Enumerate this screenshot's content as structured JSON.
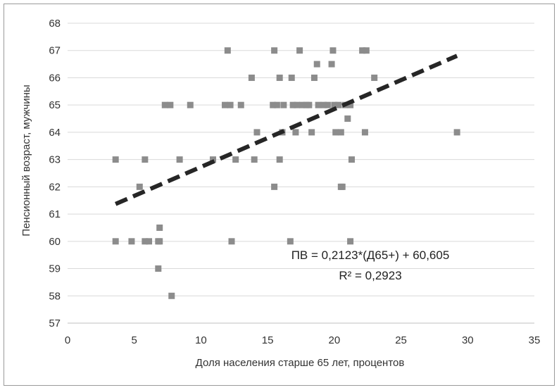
{
  "chart_data": {
    "type": "scatter",
    "xlabel": "Доля населения старше 65 лет, процентов",
    "ylabel": "Пенсионный возраст, мужчины",
    "xlim": [
      0,
      35
    ],
    "ylim": [
      57,
      68
    ],
    "x_ticks": [
      "0",
      "5",
      "10",
      "15",
      "20",
      "25",
      "30",
      "35"
    ],
    "y_ticks": [
      "57",
      "58",
      "59",
      "60",
      "61",
      "62",
      "63",
      "64",
      "65",
      "66",
      "67",
      "68"
    ],
    "grid": "horizontal",
    "colors": {
      "points": "#8c8c8c",
      "trendline": "#262626",
      "grid": "#d9d9d9"
    },
    "points": [
      [
        3.6,
        63
      ],
      [
        3.6,
        60
      ],
      [
        4.8,
        60
      ],
      [
        5.4,
        62
      ],
      [
        5.8,
        63
      ],
      [
        5.8,
        60
      ],
      [
        6.1,
        60
      ],
      [
        6.8,
        60
      ],
      [
        6.9,
        60
      ],
      [
        6.8,
        59
      ],
      [
        6.9,
        60.5
      ],
      [
        7.3,
        65
      ],
      [
        7.7,
        65
      ],
      [
        7.8,
        58
      ],
      [
        8.4,
        63
      ],
      [
        9.2,
        65
      ],
      [
        10.9,
        63
      ],
      [
        11.8,
        65
      ],
      [
        12.0,
        67
      ],
      [
        12.2,
        65
      ],
      [
        12.3,
        60
      ],
      [
        12.6,
        63
      ],
      [
        13.0,
        65
      ],
      [
        13.8,
        66
      ],
      [
        14.0,
        63
      ],
      [
        14.2,
        64
      ],
      [
        15.4,
        65
      ],
      [
        15.5,
        67
      ],
      [
        15.5,
        62
      ],
      [
        15.7,
        65
      ],
      [
        15.9,
        66
      ],
      [
        15.9,
        63
      ],
      [
        16.1,
        64
      ],
      [
        16.2,
        65
      ],
      [
        16.7,
        60
      ],
      [
        16.8,
        66
      ],
      [
        16.9,
        65
      ],
      [
        17.1,
        64
      ],
      [
        17.2,
        65
      ],
      [
        17.4,
        67
      ],
      [
        17.6,
        65
      ],
      [
        17.9,
        65
      ],
      [
        18.1,
        65
      ],
      [
        18.3,
        64
      ],
      [
        18.5,
        66
      ],
      [
        18.7,
        66.5
      ],
      [
        18.8,
        65
      ],
      [
        19.2,
        65
      ],
      [
        19.5,
        65
      ],
      [
        19.8,
        66.5
      ],
      [
        19.9,
        67
      ],
      [
        20.0,
        65
      ],
      [
        20.1,
        64
      ],
      [
        20.3,
        65
      ],
      [
        20.5,
        64
      ],
      [
        20.5,
        62
      ],
      [
        20.6,
        62
      ],
      [
        20.8,
        65
      ],
      [
        21.0,
        64.5
      ],
      [
        21.2,
        65
      ],
      [
        21.2,
        60
      ],
      [
        21.3,
        63
      ],
      [
        22.1,
        67
      ],
      [
        22.3,
        64
      ],
      [
        22.4,
        67
      ],
      [
        23.0,
        66
      ],
      [
        29.2,
        64
      ]
    ],
    "trendline": {
      "type": "linear",
      "slope": 0.2123,
      "intercept": 60.605,
      "x_range": [
        3.6,
        29.2
      ]
    },
    "annotations": [
      "ПВ = 0,2123*(Д65+) + 60,605",
      "R² = 0,2923"
    ]
  }
}
